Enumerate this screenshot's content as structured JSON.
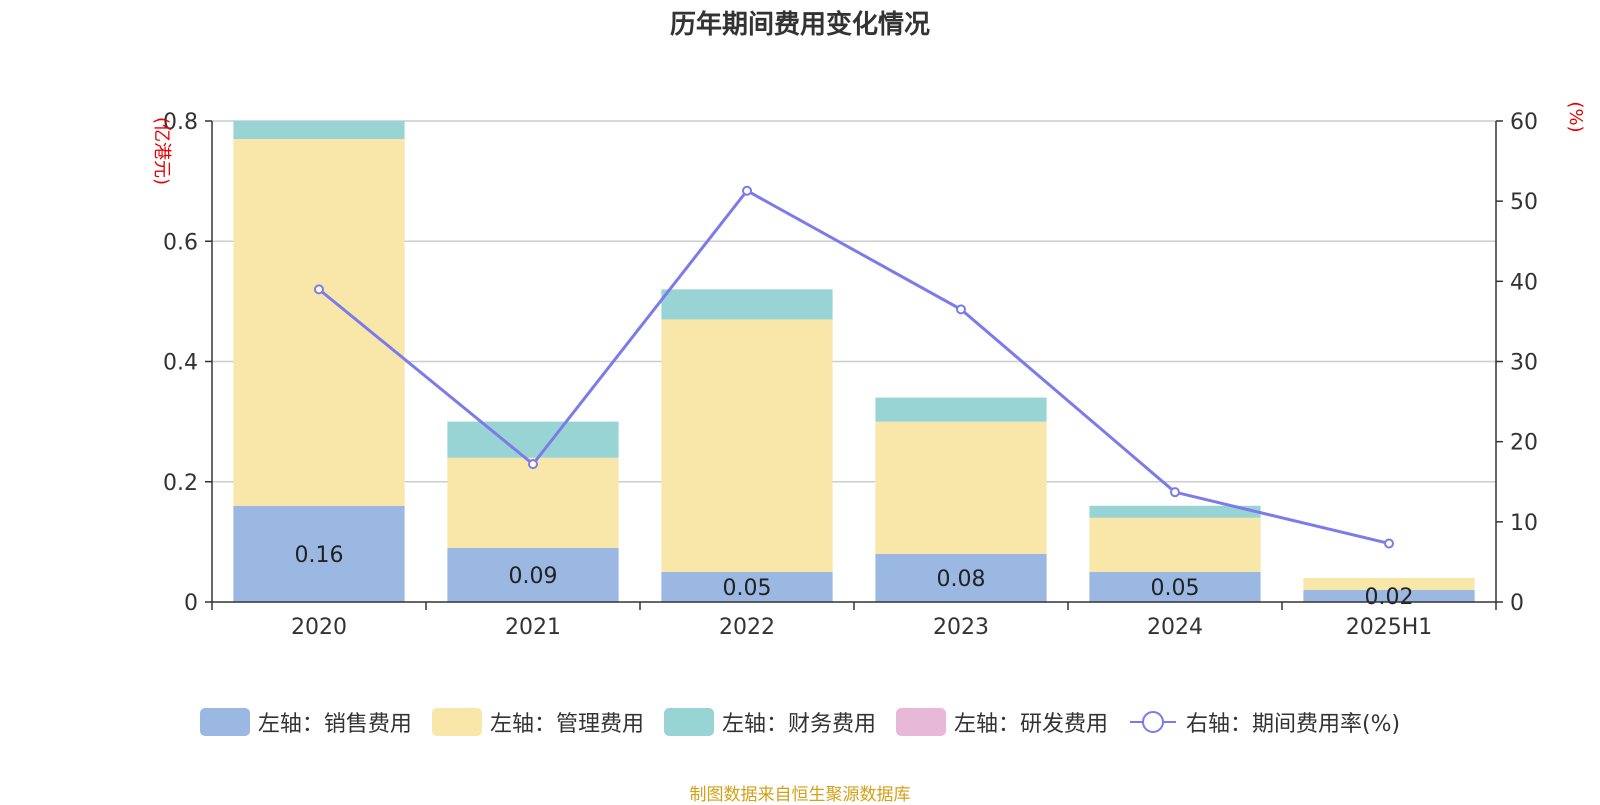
{
  "title": "历年期间费用变化情况",
  "source": "制图数据来自恒生聚源数据库",
  "chart_data": {
    "type": "bar",
    "stacked": true,
    "categories": [
      "2020",
      "2021",
      "2022",
      "2023",
      "2024",
      "2025H1"
    ],
    "left_axis": {
      "unit_label": "(亿港元)",
      "ylim": [
        0,
        0.8
      ],
      "ticks": [
        "0",
        "0.2",
        "0.4",
        "0.6",
        "0.8"
      ]
    },
    "right_axis": {
      "unit_label": "(%)",
      "ylim": [
        0,
        60
      ],
      "ticks": [
        "0",
        "10",
        "20",
        "30",
        "40",
        "50",
        "60"
      ]
    },
    "series": [
      {
        "name": "左轴：销售费用",
        "color": "#9bb8e3",
        "values": [
          0.16,
          0.09,
          0.05,
          0.08,
          0.05,
          0.02
        ],
        "labels": [
          "0.16",
          "0.09",
          "0.05",
          "0.08",
          "0.05",
          "0.02"
        ]
      },
      {
        "name": "左轴：管理费用",
        "color": "#f8e7a8",
        "values": [
          0.61,
          0.15,
          0.42,
          0.22,
          0.09,
          0.02
        ]
      },
      {
        "name": "左轴：财务费用",
        "color": "#98d4d4",
        "values": [
          0.03,
          0.06,
          0.05,
          0.04,
          0.02,
          0.0
        ]
      },
      {
        "name": "左轴：研发费用",
        "color": "#e8b8d8",
        "values": [
          0,
          0,
          0,
          0,
          0,
          0
        ]
      }
    ],
    "line_series": {
      "name": "右轴：期间费用率(%)",
      "color": "#7b7bea",
      "values": [
        39.0,
        17.2,
        51.3,
        36.5,
        13.7,
        7.3
      ]
    },
    "grid": true,
    "legend_position": "bottom"
  }
}
